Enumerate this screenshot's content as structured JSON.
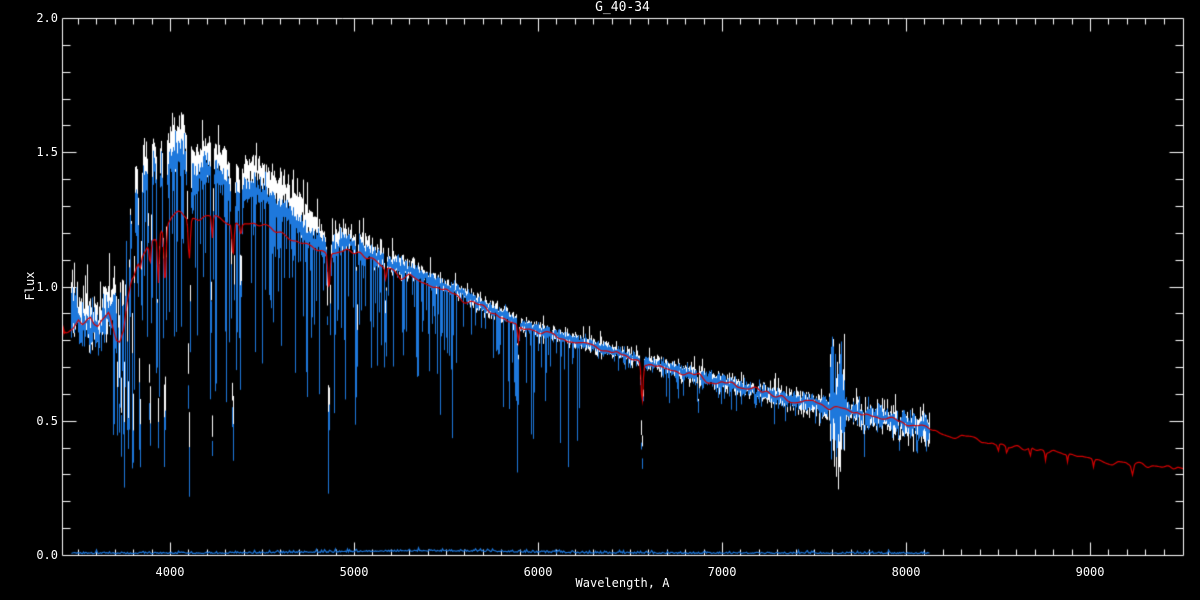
{
  "window": {
    "background": "#000000"
  },
  "chart_data": {
    "type": "line",
    "title": "G_40-34",
    "xlabel": "Wavelength, A",
    "ylabel": "Flux",
    "xlim": [
      3413,
      9505
    ],
    "ylim": [
      0.0,
      2.0
    ],
    "x_ticks": [
      4000,
      5000,
      6000,
      7000,
      8000,
      9000
    ],
    "x_minor_step": 100,
    "y_ticks": [
      0.0,
      0.5,
      1.0,
      1.5,
      2.0
    ],
    "y_minor_step": 0.1,
    "grid": false,
    "tick_style": "inward-all-sides",
    "legend": null,
    "colors": {
      "background": "#000000",
      "axis": "#ffffff",
      "observed": "#ffffff",
      "smoothed": "#1e78dc",
      "model": "#d40000",
      "noise_floor": "#1e78dc"
    },
    "series": [
      {
        "name": "observed",
        "color": "#ffffff",
        "render": "noisy-band",
        "range": [
          3460,
          8125
        ],
        "noise_scale": 1.3,
        "continuum": [
          [
            3455,
            0.9
          ],
          [
            3470,
            0.96
          ],
          [
            3490,
            0.93
          ],
          [
            3510,
            0.89
          ],
          [
            3530,
            0.92
          ],
          [
            3550,
            0.9
          ],
          [
            3570,
            0.87
          ],
          [
            3590,
            0.89
          ],
          [
            3610,
            0.86
          ],
          [
            3630,
            0.9
          ],
          [
            3650,
            0.93
          ],
          [
            3670,
            0.92
          ],
          [
            3690,
            0.95
          ],
          [
            3710,
            0.99
          ],
          [
            3730,
            1.05
          ],
          [
            3750,
            1.12
          ],
          [
            3770,
            1.22
          ],
          [
            3790,
            1.32
          ],
          [
            3810,
            1.38
          ],
          [
            3830,
            1.42
          ],
          [
            3850,
            1.45
          ],
          [
            3870,
            1.47
          ],
          [
            3890,
            1.49
          ],
          [
            3910,
            1.5
          ],
          [
            3930,
            1.5
          ],
          [
            3950,
            1.51
          ],
          [
            3970,
            1.5
          ],
          [
            3990,
            1.53
          ],
          [
            4010,
            1.55
          ],
          [
            4030,
            1.56
          ],
          [
            4060,
            1.55
          ],
          [
            4090,
            1.52
          ],
          [
            4120,
            1.47
          ],
          [
            4150,
            1.47
          ],
          [
            4180,
            1.49
          ],
          [
            4210,
            1.5
          ],
          [
            4240,
            1.49
          ],
          [
            4270,
            1.47
          ],
          [
            4300,
            1.45
          ],
          [
            4330,
            1.41
          ],
          [
            4360,
            1.4
          ],
          [
            4390,
            1.42
          ],
          [
            4420,
            1.43
          ],
          [
            4450,
            1.43
          ],
          [
            4480,
            1.42
          ],
          [
            4520,
            1.41
          ],
          [
            4560,
            1.38
          ],
          [
            4600,
            1.36
          ],
          [
            4650,
            1.33
          ],
          [
            4700,
            1.29
          ],
          [
            4750,
            1.25
          ],
          [
            4800,
            1.22
          ],
          [
            4840,
            1.18
          ],
          [
            4880,
            1.16
          ],
          [
            4920,
            1.19
          ],
          [
            4960,
            1.19
          ],
          [
            5000,
            1.17
          ],
          [
            5100,
            1.13
          ],
          [
            5200,
            1.09
          ],
          [
            5300,
            1.06
          ],
          [
            5400,
            1.03
          ],
          [
            5500,
            1.0
          ],
          [
            5600,
            0.97
          ],
          [
            5700,
            0.93
          ],
          [
            5800,
            0.9
          ],
          [
            5900,
            0.86
          ],
          [
            6000,
            0.84
          ],
          [
            6100,
            0.82
          ],
          [
            6200,
            0.8
          ],
          [
            6300,
            0.78
          ],
          [
            6400,
            0.76
          ],
          [
            6500,
            0.74
          ],
          [
            6600,
            0.715
          ],
          [
            6700,
            0.7
          ],
          [
            6800,
            0.68
          ],
          [
            6900,
            0.66
          ],
          [
            7000,
            0.64
          ],
          [
            7100,
            0.625
          ],
          [
            7200,
            0.61
          ],
          [
            7300,
            0.59
          ],
          [
            7400,
            0.575
          ],
          [
            7500,
            0.56
          ],
          [
            7600,
            0.55
          ],
          [
            7700,
            0.535
          ],
          [
            7800,
            0.52
          ],
          [
            7900,
            0.505
          ],
          [
            8000,
            0.49
          ],
          [
            8125,
            0.47
          ]
        ]
      },
      {
        "name": "smoothed",
        "color": "#1e78dc",
        "render": "noisy-band",
        "range": [
          3460,
          8125
        ],
        "noise_scale": 1.0,
        "offset_below_observed": [
          [
            3460,
            0.04
          ],
          [
            3700,
            0.05
          ],
          [
            3850,
            0.07
          ],
          [
            4700,
            0.07
          ],
          [
            5000,
            0.02
          ],
          [
            5260,
            0.0
          ],
          [
            8125,
            0.0
          ]
        ]
      },
      {
        "name": "model",
        "color": "#d40000",
        "render": "line",
        "range": [
          3413,
          9505
        ],
        "points": [
          [
            3413,
            0.82
          ],
          [
            3440,
            0.83
          ],
          [
            3470,
            0.845
          ],
          [
            3500,
            0.87
          ],
          [
            3520,
            0.855
          ],
          [
            3545,
            0.875
          ],
          [
            3565,
            0.885
          ],
          [
            3585,
            0.86
          ],
          [
            3605,
            0.845
          ],
          [
            3625,
            0.865
          ],
          [
            3645,
            0.88
          ],
          [
            3665,
            0.9
          ],
          [
            3685,
            0.85
          ],
          [
            3705,
            0.8
          ],
          [
            3725,
            0.785
          ],
          [
            3745,
            0.83
          ],
          [
            3765,
            0.95
          ],
          [
            3785,
            1.02
          ],
          [
            3805,
            1.06
          ],
          [
            3825,
            1.09
          ],
          [
            3845,
            1.11
          ],
          [
            3865,
            1.13
          ],
          [
            3885,
            1.15
          ],
          [
            3905,
            1.18
          ],
          [
            3925,
            1.19
          ],
          [
            3945,
            1.21
          ],
          [
            3965,
            1.22
          ],
          [
            3985,
            1.24
          ],
          [
            4005,
            1.255
          ],
          [
            4030,
            1.265
          ],
          [
            4060,
            1.27
          ],
          [
            4090,
            1.26
          ],
          [
            4120,
            1.25
          ],
          [
            4150,
            1.25
          ],
          [
            4180,
            1.255
          ],
          [
            4210,
            1.26
          ],
          [
            4240,
            1.255
          ],
          [
            4270,
            1.25
          ],
          [
            4300,
            1.24
          ],
          [
            4340,
            1.225
          ],
          [
            4380,
            1.22
          ],
          [
            4420,
            1.225
          ],
          [
            4460,
            1.23
          ],
          [
            4500,
            1.225
          ],
          [
            4550,
            1.215
          ],
          [
            4600,
            1.2
          ],
          [
            4650,
            1.18
          ],
          [
            4700,
            1.165
          ],
          [
            4750,
            1.15
          ],
          [
            4800,
            1.14
          ],
          [
            4861,
            1.12
          ],
          [
            4900,
            1.13
          ],
          [
            4950,
            1.14
          ],
          [
            5000,
            1.125
          ],
          [
            5050,
            1.11
          ],
          [
            5100,
            1.095
          ],
          [
            5150,
            1.075
          ],
          [
            5200,
            1.055
          ],
          [
            5250,
            1.03
          ],
          [
            5300,
            1.045
          ],
          [
            5350,
            1.025
          ],
          [
            5400,
            1.01
          ],
          [
            5450,
            0.995
          ],
          [
            5500,
            0.98
          ],
          [
            5550,
            0.965
          ],
          [
            5600,
            0.95
          ],
          [
            5650,
            0.935
          ],
          [
            5700,
            0.915
          ],
          [
            5750,
            0.9
          ],
          [
            5800,
            0.885
          ],
          [
            5850,
            0.87
          ],
          [
            5900,
            0.85
          ],
          [
            5950,
            0.845
          ],
          [
            6000,
            0.835
          ],
          [
            6100,
            0.815
          ],
          [
            6200,
            0.795
          ],
          [
            6300,
            0.775
          ],
          [
            6400,
            0.755
          ],
          [
            6500,
            0.73
          ],
          [
            6600,
            0.71
          ],
          [
            6700,
            0.695
          ],
          [
            6800,
            0.68
          ],
          [
            6900,
            0.66
          ],
          [
            7000,
            0.64
          ],
          [
            7100,
            0.625
          ],
          [
            7200,
            0.61
          ],
          [
            7300,
            0.592
          ],
          [
            7400,
            0.575
          ],
          [
            7500,
            0.56
          ],
          [
            7600,
            0.548
          ],
          [
            7700,
            0.533
          ],
          [
            7800,
            0.52
          ],
          [
            7900,
            0.507
          ],
          [
            8000,
            0.493
          ],
          [
            8050,
            0.485
          ],
          [
            8125,
            0.47
          ],
          [
            8200,
            0.455
          ],
          [
            8300,
            0.44
          ],
          [
            8400,
            0.423
          ],
          [
            8450,
            0.415
          ],
          [
            8500,
            0.405
          ],
          [
            8550,
            0.4
          ],
          [
            8600,
            0.398
          ],
          [
            8650,
            0.394
          ],
          [
            8700,
            0.39
          ],
          [
            8800,
            0.378
          ],
          [
            8900,
            0.368
          ],
          [
            9000,
            0.357
          ],
          [
            9100,
            0.349
          ],
          [
            9200,
            0.343
          ],
          [
            9300,
            0.335
          ],
          [
            9400,
            0.327
          ],
          [
            9505,
            0.316
          ]
        ]
      },
      {
        "name": "noise-floor",
        "color": "#1e78dc",
        "render": "floor",
        "range": [
          3460,
          8125
        ],
        "level": 0.005,
        "bump": {
          "center": 5400,
          "sigma": 480,
          "amp": 0.009
        }
      }
    ],
    "noise_sigma": [
      [
        3455,
        0.045
      ],
      [
        3700,
        0.04
      ],
      [
        3900,
        0.035
      ],
      [
        4200,
        0.03
      ],
      [
        4600,
        0.025
      ],
      [
        5000,
        0.02
      ],
      [
        5400,
        0.014
      ],
      [
        6000,
        0.012
      ],
      [
        6500,
        0.012
      ],
      [
        7000,
        0.014
      ],
      [
        7400,
        0.016
      ],
      [
        7600,
        0.02
      ],
      [
        8000,
        0.022
      ],
      [
        8125,
        0.022
      ]
    ],
    "noise_bursts": [
      {
        "from": 7585,
        "to": 7668,
        "factor": 5
      }
    ],
    "absorption_lines": [
      {
        "wl": 3712,
        "w": 3.0,
        "observed": 0.72,
        "smoothed": 0.6,
        "model": null
      },
      {
        "wl": 3722,
        "w": 3.0,
        "observed": 0.68,
        "smoothed": 0.55,
        "model": null
      },
      {
        "wl": 3734,
        "w": 3.0,
        "observed": 0.62,
        "smoothed": 0.5,
        "model": null
      },
      {
        "wl": 3750,
        "w": 3.5,
        "observed": 0.58,
        "smoothed": 0.45,
        "model": null
      },
      {
        "wl": 3771,
        "w": 4.0,
        "observed": 0.55,
        "smoothed": 0.42,
        "model": null
      },
      {
        "wl": 3798,
        "w": 4.5,
        "observed": 0.52,
        "smoothed": 0.4,
        "model": 1.04
      },
      {
        "wl": 3835,
        "w": 5.0,
        "observed": 0.48,
        "smoothed": 0.37,
        "model": 1.07
      },
      {
        "wl": 3889,
        "w": 5.0,
        "observed": 0.46,
        "smoothed": 0.35,
        "model": 1.08
      },
      {
        "wl": 3934,
        "w": 4.5,
        "observed": 0.55,
        "smoothed": 0.46,
        "model": 1.02
      },
      {
        "wl": 3970,
        "w": 5.5,
        "observed": 0.47,
        "smoothed": 0.37,
        "model": 1.02
      },
      {
        "wl": 4102,
        "w": 5.5,
        "observed": 0.45,
        "smoothed": 0.35,
        "model": 1.1
      },
      {
        "wl": 4227,
        "w": 3.5,
        "observed": 0.42,
        "smoothed": 0.35,
        "model": 1.17
      },
      {
        "wl": 4340,
        "w": 5.5,
        "observed": 0.47,
        "smoothed": 0.36,
        "model": 1.1
      },
      {
        "wl": 4383,
        "w": 3.0,
        "observed": 0.88,
        "smoothed": 0.78,
        "model": 1.18
      },
      {
        "wl": 4861,
        "w": 5.5,
        "observed": 0.5,
        "smoothed": 0.42,
        "model": 0.99
      },
      {
        "wl": 5015,
        "w": 3.0,
        "observed": 0.86,
        "smoothed": 0.8,
        "model": null
      },
      {
        "wl": 5170,
        "w": 4.0,
        "observed": 0.9,
        "smoothed": 0.86,
        "model": 1.02
      },
      {
        "wl": 5890,
        "w": 4.0,
        "observed": 0.72,
        "smoothed": 0.7,
        "model": 0.79
      },
      {
        "wl": 6563,
        "w": 5.0,
        "observed": 0.4,
        "smoothed": 0.32,
        "model": 0.57
      },
      {
        "wl": 6870,
        "w": 4.0,
        "observed": 0.58,
        "smoothed": 0.55,
        "model": null
      },
      {
        "wl": 7180,
        "w": 4.0,
        "observed": 0.58,
        "smoothed": 0.56,
        "model": null
      },
      {
        "wl": 7770,
        "w": 4.0,
        "observed": 0.45,
        "smoothed": 0.41,
        "model": null
      },
      {
        "wl": 7960,
        "w": 3.5,
        "observed": 0.44,
        "smoothed": 0.41,
        "model": null
      },
      {
        "wl": 8060,
        "w": 3.5,
        "observed": 0.45,
        "smoothed": 0.42,
        "model": null
      },
      {
        "wl": 8498,
        "w": 3.0,
        "observed": null,
        "smoothed": null,
        "model": 0.38
      },
      {
        "wl": 8545,
        "w": 3.0,
        "observed": null,
        "smoothed": null,
        "model": 0.375
      },
      {
        "wl": 8672,
        "w": 3.5,
        "observed": null,
        "smoothed": null,
        "model": 0.36
      },
      {
        "wl": 8755,
        "w": 3.0,
        "observed": null,
        "smoothed": null,
        "model": 0.353
      },
      {
        "wl": 8875,
        "w": 3.0,
        "observed": null,
        "smoothed": null,
        "model": 0.342
      },
      {
        "wl": 9016,
        "w": 3.5,
        "observed": null,
        "smoothed": null,
        "model": 0.328
      },
      {
        "wl": 9228,
        "w": 5.0,
        "observed": null,
        "smoothed": null,
        "model": 0.306
      }
    ]
  }
}
